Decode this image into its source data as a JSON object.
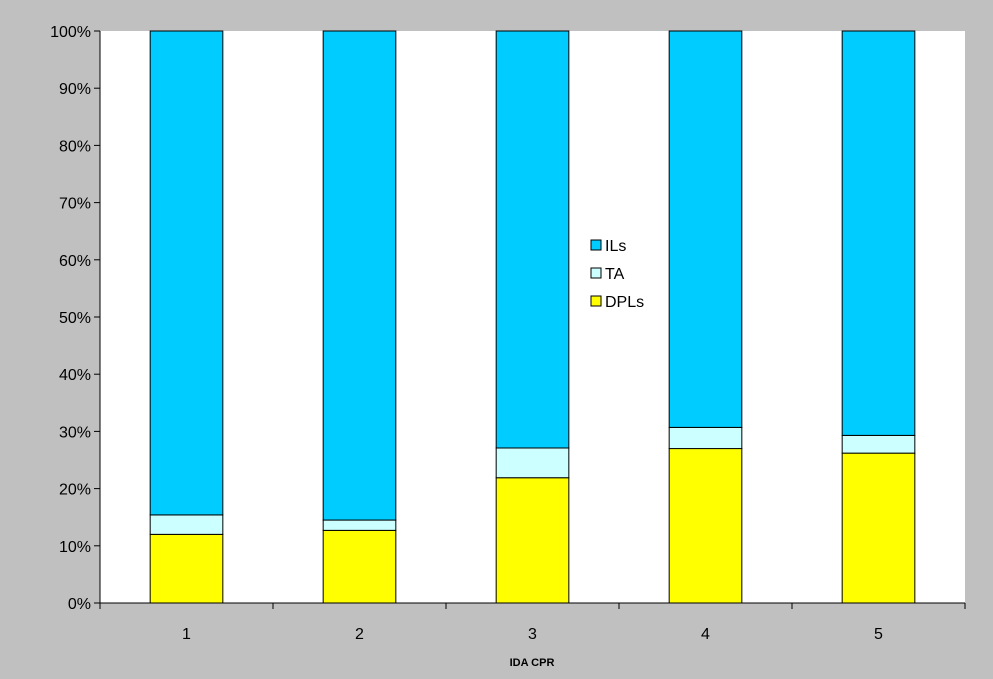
{
  "chart_data": {
    "type": "bar",
    "stacked": true,
    "normalized": true,
    "categories": [
      "1",
      "2",
      "3",
      "4",
      "5"
    ],
    "series": [
      {
        "name": "DPLs",
        "color": "#ffff00",
        "values": [
          12.0,
          12.7,
          21.9,
          27.0,
          26.2
        ]
      },
      {
        "name": "TA",
        "color": "#ccffff",
        "values": [
          3.4,
          1.8,
          5.2,
          3.7,
          3.1
        ]
      },
      {
        "name": "ILs",
        "color": "#00ccff",
        "values": [
          84.6,
          85.5,
          72.9,
          69.3,
          70.7
        ]
      }
    ],
    "legend_order": [
      "ILs",
      "TA",
      "DPLs"
    ],
    "title": "",
    "xlabel": "IDA CPR",
    "ylabel": "",
    "ylim": [
      0,
      100
    ],
    "yticks": [
      "0%",
      "10%",
      "20%",
      "30%",
      "40%",
      "50%",
      "60%",
      "70%",
      "80%",
      "90%",
      "100%"
    ],
    "grid": false,
    "legend_position": "center-right",
    "colors": {
      "plot_background": "#ffffff",
      "chart_background": "#c0c0c0",
      "axis": "#000000"
    }
  }
}
